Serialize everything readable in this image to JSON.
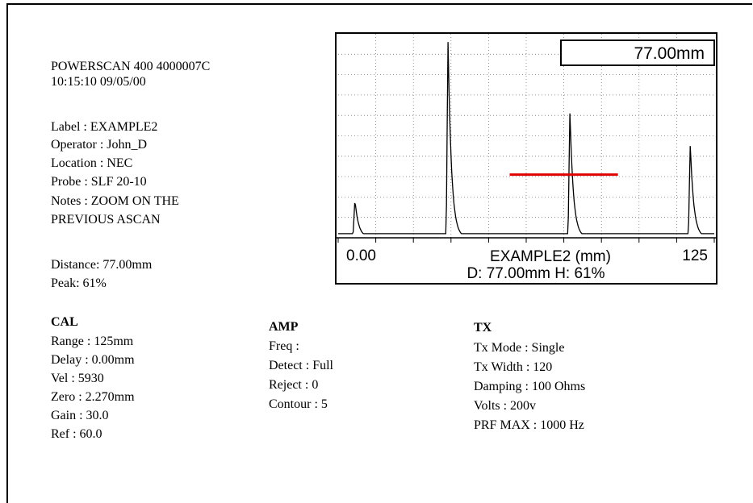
{
  "device": {
    "model_line": "POWERSCAN 400 4000007C",
    "timestamp": "10:15:10 09/05/00"
  },
  "meta": {
    "label": "Label : EXAMPLE2",
    "operator": "Operator : John_D",
    "location": "Location : NEC",
    "probe": "Probe : SLF 20-10",
    "notes_1": "Notes : ZOOM ON THE",
    "notes_2": "PREVIOUS ASCAN"
  },
  "readings": {
    "distance": "Distance: 77.00mm",
    "peak": "Peak: 61%"
  },
  "cal": {
    "title": "CAL",
    "range": "Range : 125mm",
    "delay": "Delay : 0.00mm",
    "vel": "Vel : 5930",
    "zero": "Zero : 2.270mm",
    "gain": "Gain : 30.0",
    "ref": "Ref : 60.0"
  },
  "amp": {
    "title": "AMP",
    "freq": "Freq :",
    "detect": "Detect : Full",
    "reject": "Reject : 0",
    "contour": "Contour : 5"
  },
  "tx": {
    "title": "TX",
    "mode": "Tx Mode : Single",
    "width": "Tx Width : 120",
    "damping": "Damping : 100 Ohms",
    "volts": "Volts : 200v",
    "prf": "PRF MAX : 1000 Hz"
  },
  "ascan": {
    "readout_box": "77.00mm",
    "x_min_label": "0.00",
    "x_max_label": "125",
    "caption": "EXAMPLE2 (mm)",
    "status": "D: 77.00mm H: 61%",
    "gate_color": "#e00000",
    "trace_color": "#000000"
  },
  "chart_data": {
    "type": "line",
    "xlim": [
      0,
      125
    ],
    "ylim": [
      0,
      100
    ],
    "grid": true,
    "xlabel": "EXAMPLE2 (mm)",
    "x_tick_labels": [
      "0.00",
      "125"
    ],
    "peaks": [
      {
        "x": 5.5,
        "height": 17
      },
      {
        "x": 36.5,
        "height": 96
      },
      {
        "x": 77.0,
        "height": 61
      },
      {
        "x": 117.0,
        "height": 45
      }
    ],
    "baseline": 2,
    "gate": {
      "start": 57,
      "end": 93,
      "level": 31
    }
  }
}
